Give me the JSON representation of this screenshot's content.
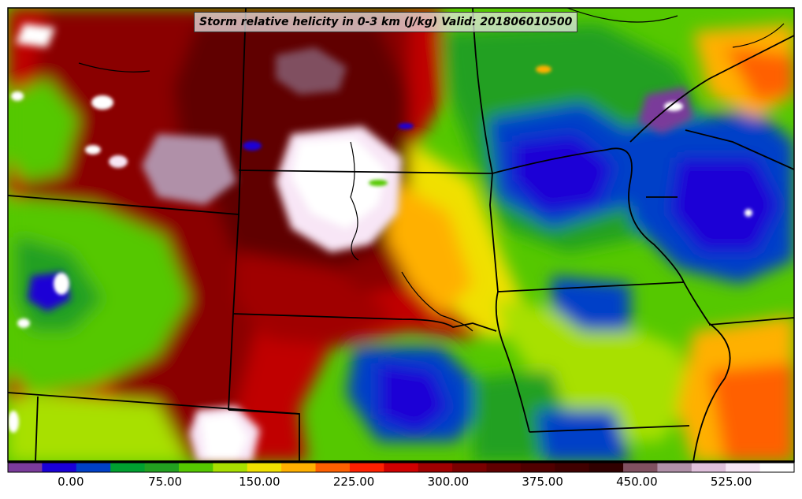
{
  "map": {
    "title": "Storm relative helicity in 0-3 km (J/kg) Valid: 201806010500",
    "parameter": "Storm relative helicity in 0-3 km",
    "units": "J/kg",
    "valid": "201806010500",
    "region": "Northern Great Plains / Upper Midwest"
  },
  "colorbar": {
    "tick_labels": [
      "0.00",
      "75.00",
      "150.00",
      "225.00",
      "300.00",
      "375.00",
      "450.00",
      "525.00"
    ],
    "tick_values": [
      0,
      75,
      150,
      225,
      300,
      375,
      450,
      525
    ],
    "range": [
      -50,
      575
    ],
    "step": 25,
    "colors": [
      "#7a3b9a",
      "#1a00d6",
      "#0040c8",
      "#00a030",
      "#22a020",
      "#55c800",
      "#a8e000",
      "#f0e000",
      "#ffb000",
      "#ff6000",
      "#ff2000",
      "#d00000",
      "#a00000",
      "#7a0000",
      "#600000",
      "#500000",
      "#400000",
      "#300000",
      "#805060",
      "#b090a8",
      "#e0c0dc",
      "#f8e6f6",
      "#ffffff"
    ]
  }
}
